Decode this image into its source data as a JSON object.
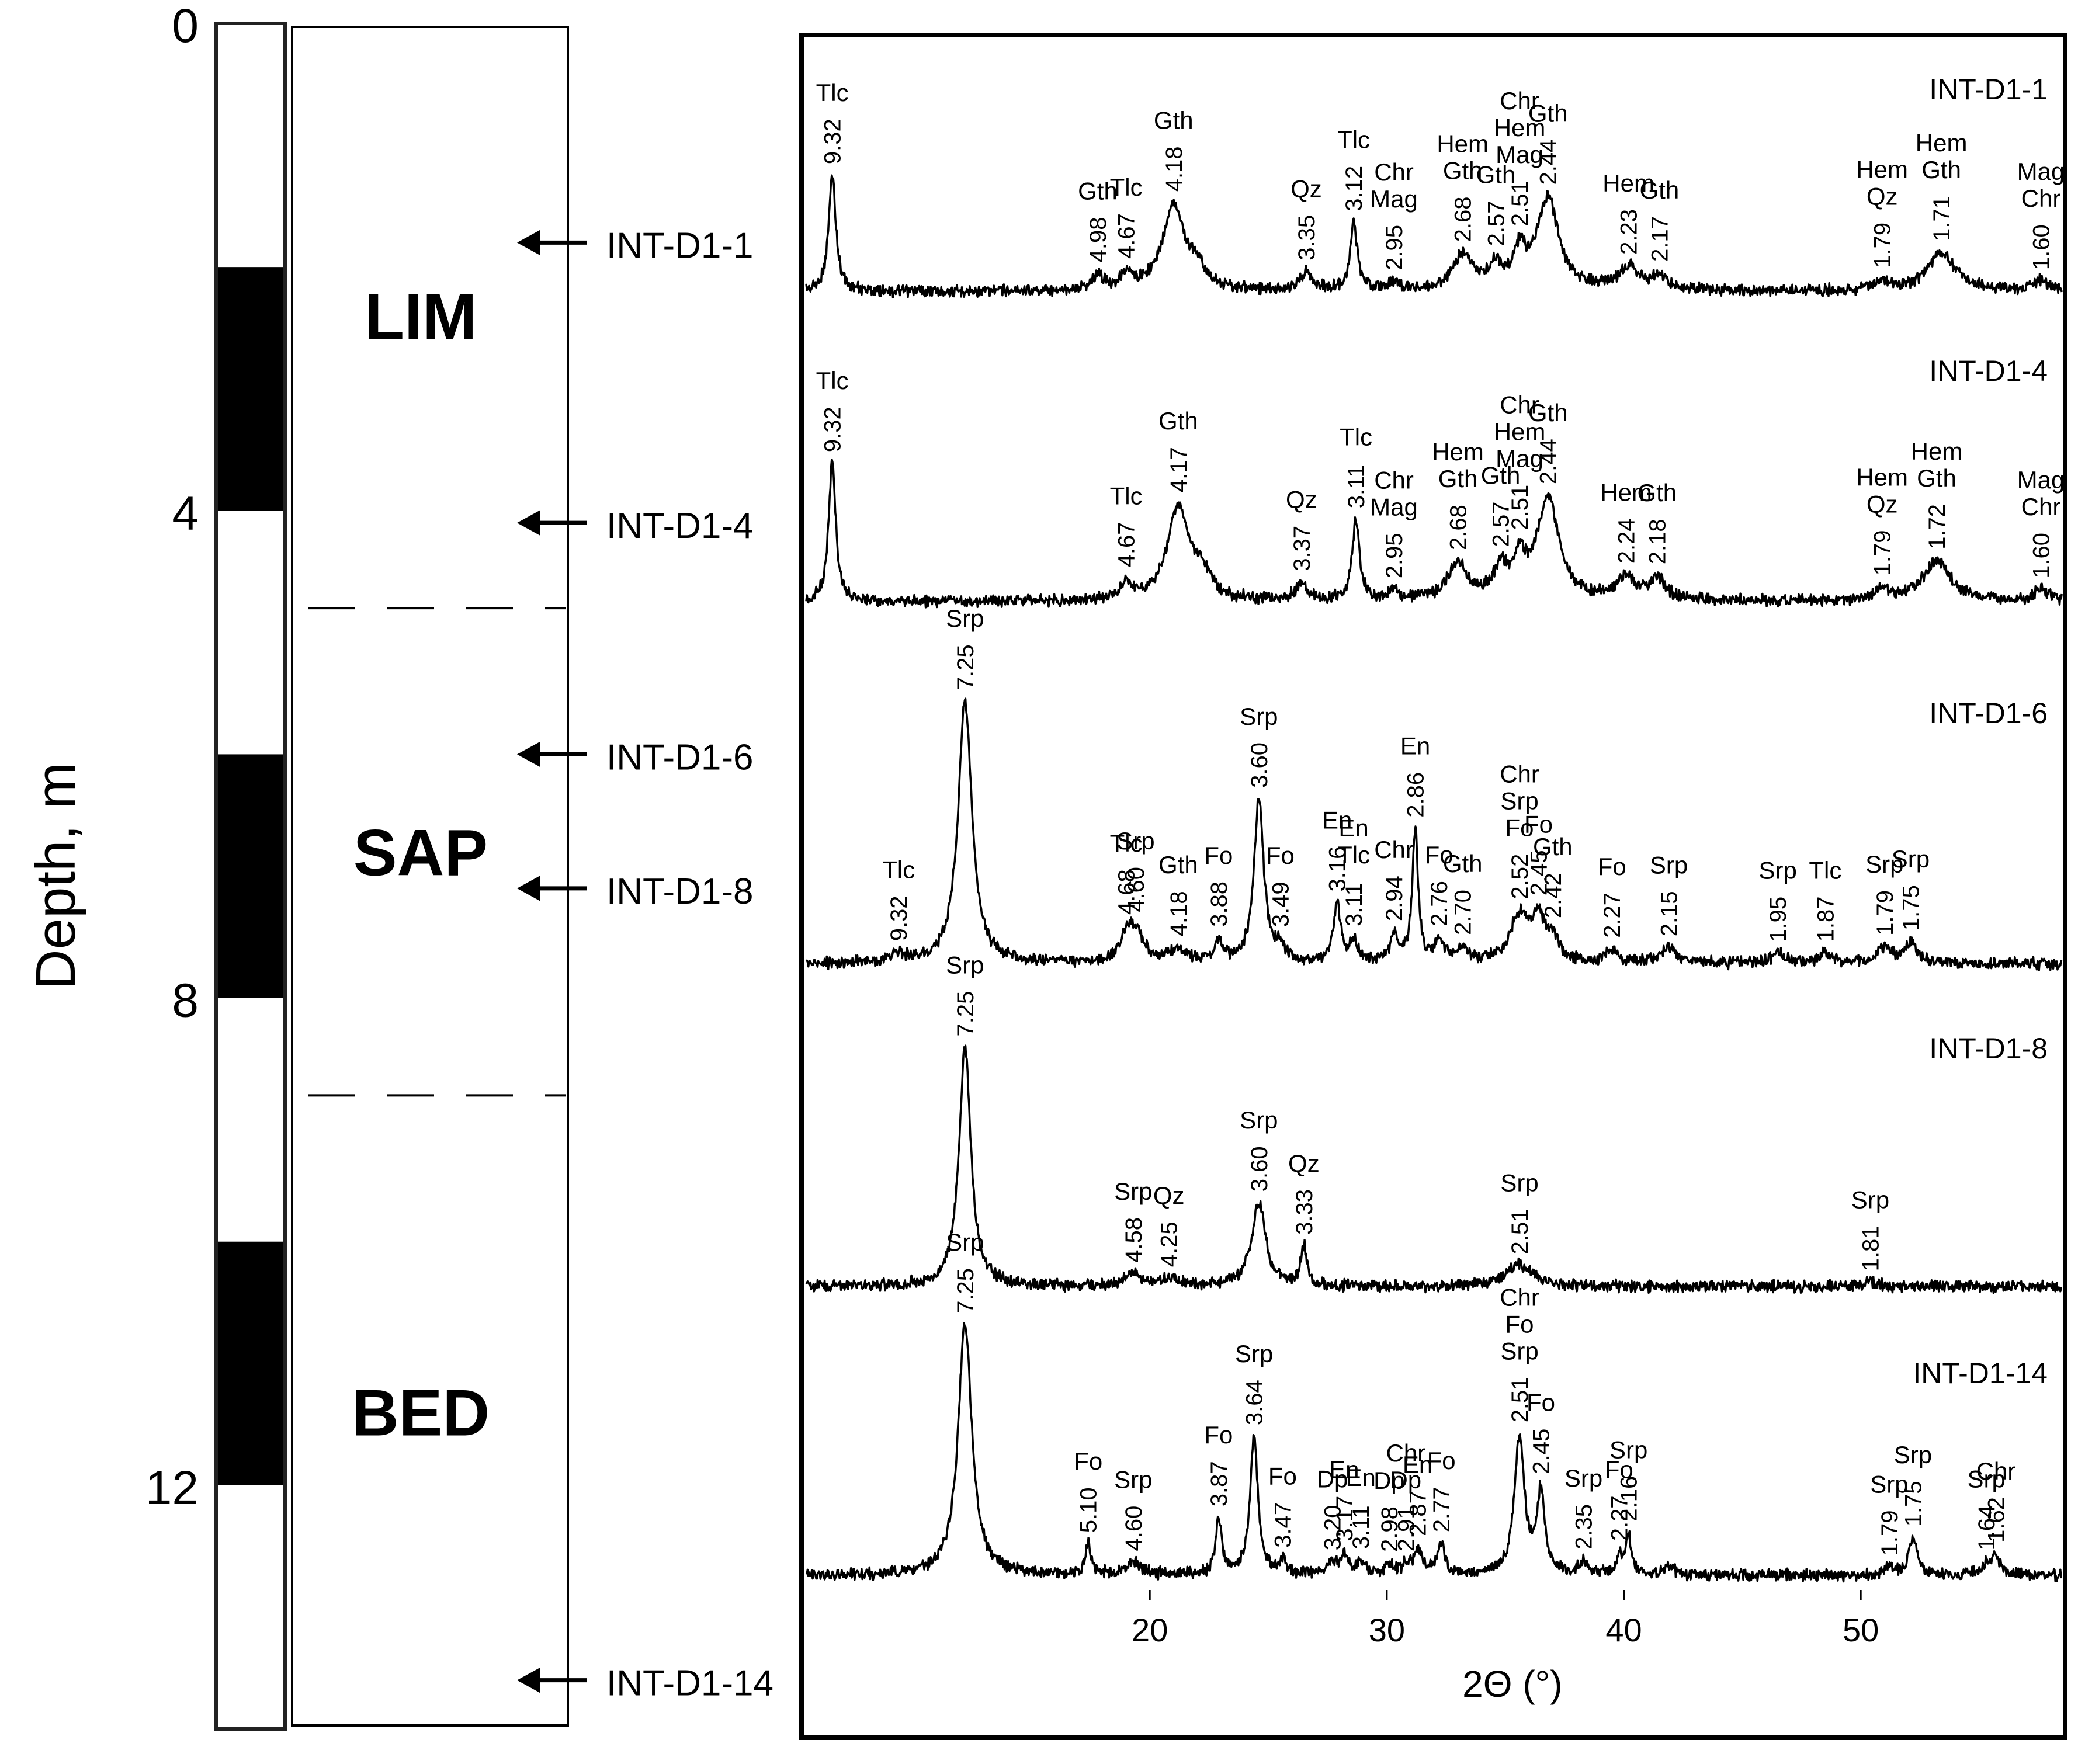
{
  "chart_data": {
    "type": "line",
    "title": "",
    "xlabel": "2Θ (°)",
    "ylabel": "Depth, m",
    "xlim": [
      5.5,
      58.5
    ],
    "xticks": [
      20,
      30,
      40,
      50
    ],
    "depth_axis": {
      "label": "Depth, m",
      "range": [
        0,
        14
      ],
      "ticks": [
        {
          "label": "0",
          "value": 0
        },
        {
          "label": "4",
          "value": 4
        },
        {
          "label": "8",
          "value": 8
        },
        {
          "label": "12",
          "value": 12
        }
      ],
      "scale_blocks": [
        [
          0,
          2
        ],
        [
          2,
          4
        ],
        [
          4,
          6
        ],
        [
          6,
          8
        ],
        [
          8,
          10
        ],
        [
          10,
          12
        ],
        [
          12,
          14
        ]
      ]
    },
    "zones": [
      {
        "name": "LIM",
        "from": 0,
        "to": 4.8
      },
      {
        "name": "SAP",
        "from": 4.8,
        "to": 8.8
      },
      {
        "name": "BED",
        "from": 8.8,
        "to": 14
      }
    ],
    "samples": [
      {
        "name": "INT-D1-1",
        "depth": 1.8
      },
      {
        "name": "INT-D1-4",
        "depth": 4.1
      },
      {
        "name": "INT-D1-6",
        "depth": 6.0
      },
      {
        "name": "INT-D1-8",
        "depth": 7.1
      },
      {
        "name": "INT-D1-14",
        "depth": 13.6
      }
    ],
    "series": [
      {
        "name": "INT-D1-1",
        "baseline": 0.1,
        "peaks": [
          [
            6.6,
            0.95,
            0.18
          ],
          [
            17.8,
            0.12,
            0.3
          ],
          [
            19.0,
            0.12,
            0.3
          ],
          [
            21.0,
            0.7,
            0.55
          ],
          [
            22.0,
            0.15,
            0.4
          ],
          [
            26.6,
            0.15,
            0.3
          ],
          [
            28.6,
            0.55,
            0.18
          ],
          [
            30.3,
            0.06,
            0.3
          ],
          [
            33.2,
            0.28,
            0.5
          ],
          [
            34.6,
            0.18,
            0.35
          ],
          [
            35.6,
            0.28,
            0.3
          ],
          [
            36.8,
            0.75,
            0.55
          ],
          [
            40.2,
            0.18,
            0.5
          ],
          [
            41.5,
            0.12,
            0.4
          ],
          [
            50.9,
            0.08,
            0.4
          ],
          [
            53.4,
            0.32,
            0.7
          ],
          [
            57.6,
            0.08,
            0.35
          ]
        ],
        "labels": [
          {
            "d": "9.32",
            "x": 6.6,
            "min": [
              "Tlc"
            ]
          },
          {
            "d": "4.98",
            "x": 17.8,
            "min": [
              "Gth"
            ]
          },
          {
            "d": "4.67",
            "x": 19.0,
            "min": [
              "Tlc"
            ]
          },
          {
            "d": "4.18",
            "x": 21.0,
            "min": [
              "Gth"
            ]
          },
          {
            "d": "3.35",
            "x": 26.6,
            "min": [
              "Qz"
            ]
          },
          {
            "d": "3.12",
            "x": 28.6,
            "min": [
              "Tlc"
            ]
          },
          {
            "d": "2.95",
            "x": 30.3,
            "min": [
              "Chr",
              "Mag"
            ]
          },
          {
            "d": "2.68",
            "x": 33.2,
            "min": [
              "Hem",
              "Gth"
            ]
          },
          {
            "d": "2.57",
            "x": 34.6,
            "min": [
              "Gth"
            ]
          },
          {
            "d": "2.51",
            "x": 35.6,
            "min": [
              "Chr",
              "Hem",
              "Mag"
            ]
          },
          {
            "d": "2.44",
            "x": 36.8,
            "min": [
              "Gth"
            ]
          },
          {
            "d": "2.23",
            "x": 40.2,
            "min": [
              "Hem"
            ]
          },
          {
            "d": "2.17",
            "x": 41.5,
            "min": [
              "Gth"
            ]
          },
          {
            "d": "1.79",
            "x": 50.9,
            "min": [
              "Hem",
              "Qz"
            ]
          },
          {
            "d": "1.71",
            "x": 53.4,
            "min": [
              "Hem",
              "Gth"
            ]
          },
          {
            "d": "1.60",
            "x": 57.6,
            "min": [
              "Mag",
              "Chr"
            ]
          }
        ]
      },
      {
        "name": "INT-D1-4",
        "baseline": 0.1,
        "peaks": [
          [
            6.6,
            0.95,
            0.18
          ],
          [
            19.0,
            0.12,
            0.3
          ],
          [
            21.2,
            0.65,
            0.55
          ],
          [
            22.2,
            0.15,
            0.4
          ],
          [
            26.4,
            0.12,
            0.3
          ],
          [
            28.7,
            0.55,
            0.18
          ],
          [
            30.3,
            0.06,
            0.3
          ],
          [
            33.0,
            0.25,
            0.5
          ],
          [
            34.8,
            0.2,
            0.35
          ],
          [
            35.6,
            0.25,
            0.3
          ],
          [
            36.8,
            0.7,
            0.55
          ],
          [
            40.1,
            0.15,
            0.5
          ],
          [
            41.4,
            0.15,
            0.4
          ],
          [
            50.9,
            0.08,
            0.4
          ],
          [
            53.2,
            0.28,
            0.7
          ],
          [
            57.6,
            0.08,
            0.35
          ]
        ],
        "labels": [
          {
            "d": "9.32",
            "x": 6.6,
            "min": [
              "Tlc"
            ]
          },
          {
            "d": "4.67",
            "x": 19.0,
            "min": [
              "Tlc"
            ]
          },
          {
            "d": "4.17",
            "x": 21.2,
            "min": [
              "Gth"
            ]
          },
          {
            "d": "3.37",
            "x": 26.4,
            "min": [
              "Qz"
            ]
          },
          {
            "d": "3.11",
            "x": 28.7,
            "min": [
              "Tlc"
            ]
          },
          {
            "d": "2.95",
            "x": 30.3,
            "min": [
              "Chr",
              "Mag"
            ]
          },
          {
            "d": "2.68",
            "x": 33.0,
            "min": [
              "Hem",
              "Gth"
            ]
          },
          {
            "d": "2.57",
            "x": 34.8,
            "min": [
              "Gth"
            ]
          },
          {
            "d": "2.51",
            "x": 35.6,
            "min": [
              "Chr",
              "Hem",
              "Mag"
            ]
          },
          {
            "d": "2.44",
            "x": 36.8,
            "min": [
              "Gth"
            ]
          },
          {
            "d": "2.24",
            "x": 40.1,
            "min": [
              "Hem"
            ]
          },
          {
            "d": "2.18",
            "x": 41.4,
            "min": [
              "Gth"
            ]
          },
          {
            "d": "1.79",
            "x": 50.9,
            "min": [
              "Hem",
              "Qz"
            ]
          },
          {
            "d": "1.72",
            "x": 53.2,
            "min": [
              "Hem",
              "Gth"
            ]
          },
          {
            "d": "1.60",
            "x": 57.6,
            "min": [
              "Mag",
              "Chr"
            ]
          }
        ]
      },
      {
        "name": "INT-D1-6",
        "baseline": 0.04,
        "peaks": [
          [
            9.4,
            0.03,
            0.4
          ],
          [
            12.2,
            1.0,
            0.35
          ],
          [
            19.0,
            0.08,
            0.3
          ],
          [
            19.4,
            0.12,
            0.4
          ],
          [
            21.2,
            0.05,
            0.4
          ],
          [
            22.9,
            0.08,
            0.2
          ],
          [
            24.6,
            0.62,
            0.25
          ],
          [
            25.5,
            0.05,
            0.25
          ],
          [
            27.9,
            0.22,
            0.18
          ],
          [
            28.6,
            0.08,
            0.2
          ],
          [
            30.3,
            0.1,
            0.2
          ],
          [
            31.2,
            0.5,
            0.15
          ],
          [
            32.2,
            0.08,
            0.25
          ],
          [
            33.2,
            0.05,
            0.25
          ],
          [
            35.6,
            0.18,
            0.5
          ],
          [
            36.4,
            0.15,
            0.3
          ],
          [
            37.0,
            0.08,
            0.3
          ],
          [
            39.5,
            0.05,
            0.3
          ],
          [
            41.9,
            0.06,
            0.4
          ],
          [
            46.5,
            0.04,
            0.3
          ],
          [
            48.5,
            0.04,
            0.3
          ],
          [
            51.0,
            0.06,
            0.35
          ],
          [
            52.1,
            0.08,
            0.3
          ]
        ],
        "labels": [
          {
            "d": "9.32",
            "x": 9.4,
            "min": [
              "Tlc"
            ]
          },
          {
            "d": "7.25",
            "x": 12.2,
            "min": [
              "Srp"
            ]
          },
          {
            "d": "4.68",
            "x": 19.0,
            "min": [
              "Tlc"
            ]
          },
          {
            "d": "4.60",
            "x": 19.4,
            "min": [
              "Srp"
            ]
          },
          {
            "d": "4.18",
            "x": 21.2,
            "min": [
              "Gth"
            ]
          },
          {
            "d": "3.88",
            "x": 22.9,
            "min": [
              "Fo"
            ]
          },
          {
            "d": "3.60",
            "x": 24.6,
            "min": [
              "Srp"
            ]
          },
          {
            "d": "3.49",
            "x": 25.5,
            "min": [
              "Fo"
            ]
          },
          {
            "d": "3.16",
            "x": 27.9,
            "min": [
              "En"
            ]
          },
          {
            "d": "3.11",
            "x": 28.6,
            "min": [
              "En",
              "Tlc"
            ]
          },
          {
            "d": "2.94",
            "x": 30.3,
            "min": [
              "Chr"
            ]
          },
          {
            "d": "2.86",
            "x": 31.2,
            "min": [
              "En"
            ]
          },
          {
            "d": "2.76",
            "x": 32.2,
            "min": [
              "Fo"
            ]
          },
          {
            "d": "2.70",
            "x": 33.2,
            "min": [
              "Gth"
            ]
          },
          {
            "d": "2.52",
            "x": 35.6,
            "min": [
              "Chr",
              "Srp",
              "Fo"
            ]
          },
          {
            "d": "2.45",
            "x": 36.4,
            "min": [
              "Fo"
            ]
          },
          {
            "d": "2.42",
            "x": 37.0,
            "min": [
              "Gth"
            ]
          },
          {
            "d": "2.27",
            "x": 39.5,
            "min": [
              "Fo"
            ]
          },
          {
            "d": "2.15",
            "x": 41.9,
            "min": [
              "Srp"
            ]
          },
          {
            "d": "1.95",
            "x": 46.5,
            "min": [
              "Srp"
            ]
          },
          {
            "d": "1.87",
            "x": 48.5,
            "min": [
              "Tlc"
            ]
          },
          {
            "d": "1.79",
            "x": 51.0,
            "min": [
              "Srp"
            ]
          },
          {
            "d": "1.75",
            "x": 52.1,
            "min": [
              "Srp"
            ]
          }
        ]
      },
      {
        "name": "INT-D1-8",
        "baseline": 0.03,
        "peaks": [
          [
            12.2,
            1.0,
            0.3
          ],
          [
            19.3,
            0.05,
            0.4
          ],
          [
            20.8,
            0.03,
            0.4
          ],
          [
            24.6,
            0.35,
            0.35
          ],
          [
            26.5,
            0.16,
            0.15
          ],
          [
            35.6,
            0.09,
            0.7
          ],
          [
            50.4,
            0.02,
            0.4
          ]
        ],
        "labels": [
          {
            "d": "7.25",
            "x": 12.2,
            "min": [
              "Srp"
            ]
          },
          {
            "d": "4.58",
            "x": 19.3,
            "min": [
              "Srp"
            ]
          },
          {
            "d": "4.25",
            "x": 20.8,
            "min": [
              "Qz"
            ]
          },
          {
            "d": "3.60",
            "x": 24.6,
            "min": [
              "Srp"
            ]
          },
          {
            "d": "3.33",
            "x": 26.5,
            "min": [
              "Qz"
            ]
          },
          {
            "d": "2.51",
            "x": 35.6,
            "min": [
              "Srp"
            ]
          },
          {
            "d": "1.81",
            "x": 50.4,
            "min": [
              "Srp"
            ]
          }
        ]
      },
      {
        "name": "INT-D1-14",
        "baseline": 0.03,
        "peaks": [
          [
            12.2,
            1.0,
            0.35
          ],
          [
            17.4,
            0.12,
            0.15
          ],
          [
            19.3,
            0.05,
            0.4
          ],
          [
            22.9,
            0.22,
            0.15
          ],
          [
            24.4,
            0.55,
            0.2
          ],
          [
            25.6,
            0.05,
            0.2
          ],
          [
            27.7,
            0.04,
            0.2
          ],
          [
            28.2,
            0.08,
            0.2
          ],
          [
            28.9,
            0.05,
            0.2
          ],
          [
            30.1,
            0.04,
            0.2
          ],
          [
            30.8,
            0.03,
            0.2
          ],
          [
            31.3,
            0.1,
            0.2
          ],
          [
            32.3,
            0.12,
            0.2
          ],
          [
            35.6,
            0.55,
            0.25
          ],
          [
            36.5,
            0.32,
            0.2
          ],
          [
            38.3,
            0.05,
            0.2
          ],
          [
            39.8,
            0.07,
            0.15
          ],
          [
            40.2,
            0.16,
            0.15
          ],
          [
            41.9,
            0.03,
            0.3
          ],
          [
            51.2,
            0.03,
            0.3
          ],
          [
            52.2,
            0.15,
            0.2
          ],
          [
            55.3,
            0.04,
            0.2
          ],
          [
            55.7,
            0.08,
            0.2
          ]
        ],
        "labels": [
          {
            "d": "7.25",
            "x": 12.2,
            "min": [
              "Srp"
            ]
          },
          {
            "d": "5.10",
            "x": 17.4,
            "min": [
              "Fo"
            ]
          },
          {
            "d": "4.60",
            "x": 19.3,
            "min": [
              "Srp"
            ]
          },
          {
            "d": "3.87",
            "x": 22.9,
            "min": [
              "Fo"
            ]
          },
          {
            "d": "3.64",
            "x": 24.4,
            "min": [
              "Srp"
            ]
          },
          {
            "d": "3.47",
            "x": 25.6,
            "min": [
              "Fo"
            ]
          },
          {
            "d": "3.20",
            "x": 27.7,
            "min": [
              "Dp"
            ]
          },
          {
            "d": "3.17",
            "x": 28.2,
            "min": [
              "En"
            ]
          },
          {
            "d": "3.11",
            "x": 28.9,
            "min": [
              "En"
            ]
          },
          {
            "d": "2.98",
            "x": 30.1,
            "min": [
              "Dp"
            ]
          },
          {
            "d": "2.91",
            "x": 30.8,
            "min": [
              "Chr",
              "Dp"
            ]
          },
          {
            "d": "2.87",
            "x": 31.3,
            "min": [
              "En"
            ]
          },
          {
            "d": "2.77",
            "x": 32.3,
            "min": [
              "Fo"
            ]
          },
          {
            "d": "2.51",
            "x": 35.6,
            "min": [
              "Chr",
              "Fo",
              "Srp"
            ]
          },
          {
            "d": "2.45",
            "x": 36.5,
            "min": [
              "Fo"
            ]
          },
          {
            "d": "2.35",
            "x": 38.3,
            "min": [
              "Srp"
            ]
          },
          {
            "d": "2.27",
            "x": 39.8,
            "min": [
              "Fo"
            ]
          },
          {
            "d": "2.16",
            "x": 40.2,
            "min": [
              "Srp"
            ]
          },
          {
            "d": "1.79",
            "x": 51.2,
            "min": [
              "Srp"
            ]
          },
          {
            "d": "1.75",
            "x": 52.2,
            "min": [
              "Srp"
            ]
          },
          {
            "d": "1.64",
            "x": 55.3,
            "min": [
              "Srp"
            ]
          },
          {
            "d": "1.62",
            "x": 55.7,
            "min": [
              "Chr"
            ]
          }
        ]
      }
    ]
  }
}
